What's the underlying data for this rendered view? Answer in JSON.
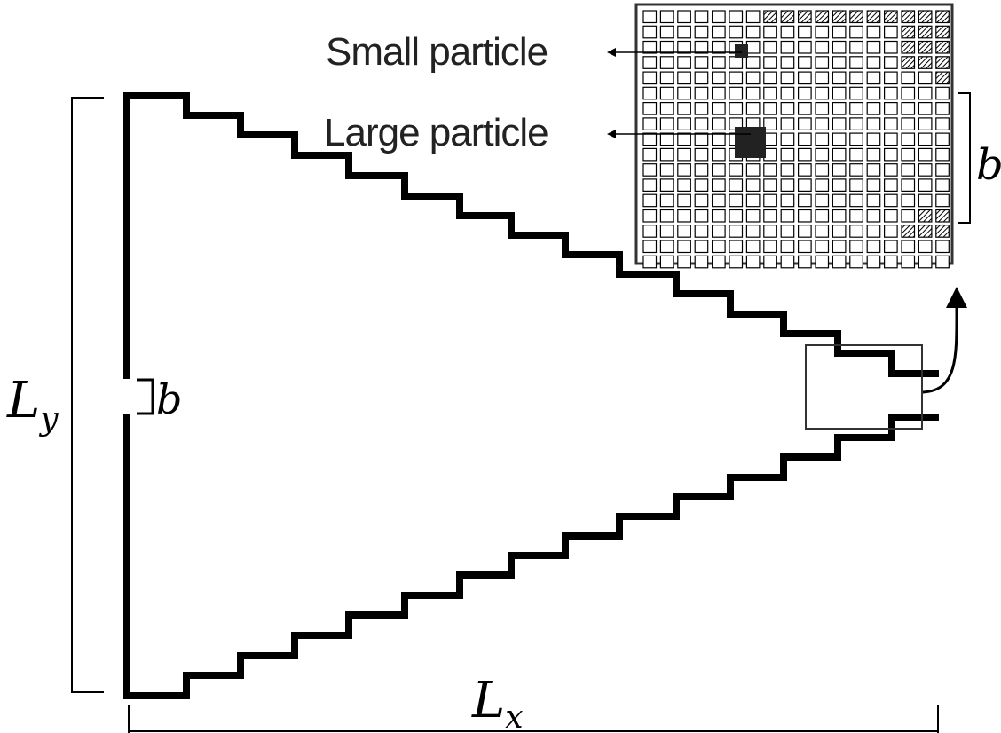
{
  "labels": {
    "small_particle": "Small particle",
    "large_particle": "Large particle",
    "ly_main": "L",
    "ly_sub": "y",
    "lx_main": "L",
    "lx_sub": "x",
    "b_left": "b",
    "b_right": "b"
  },
  "colors": {
    "stroke": "#000000",
    "particle": "#222222",
    "frame": "#333333",
    "text": "#222222"
  }
}
